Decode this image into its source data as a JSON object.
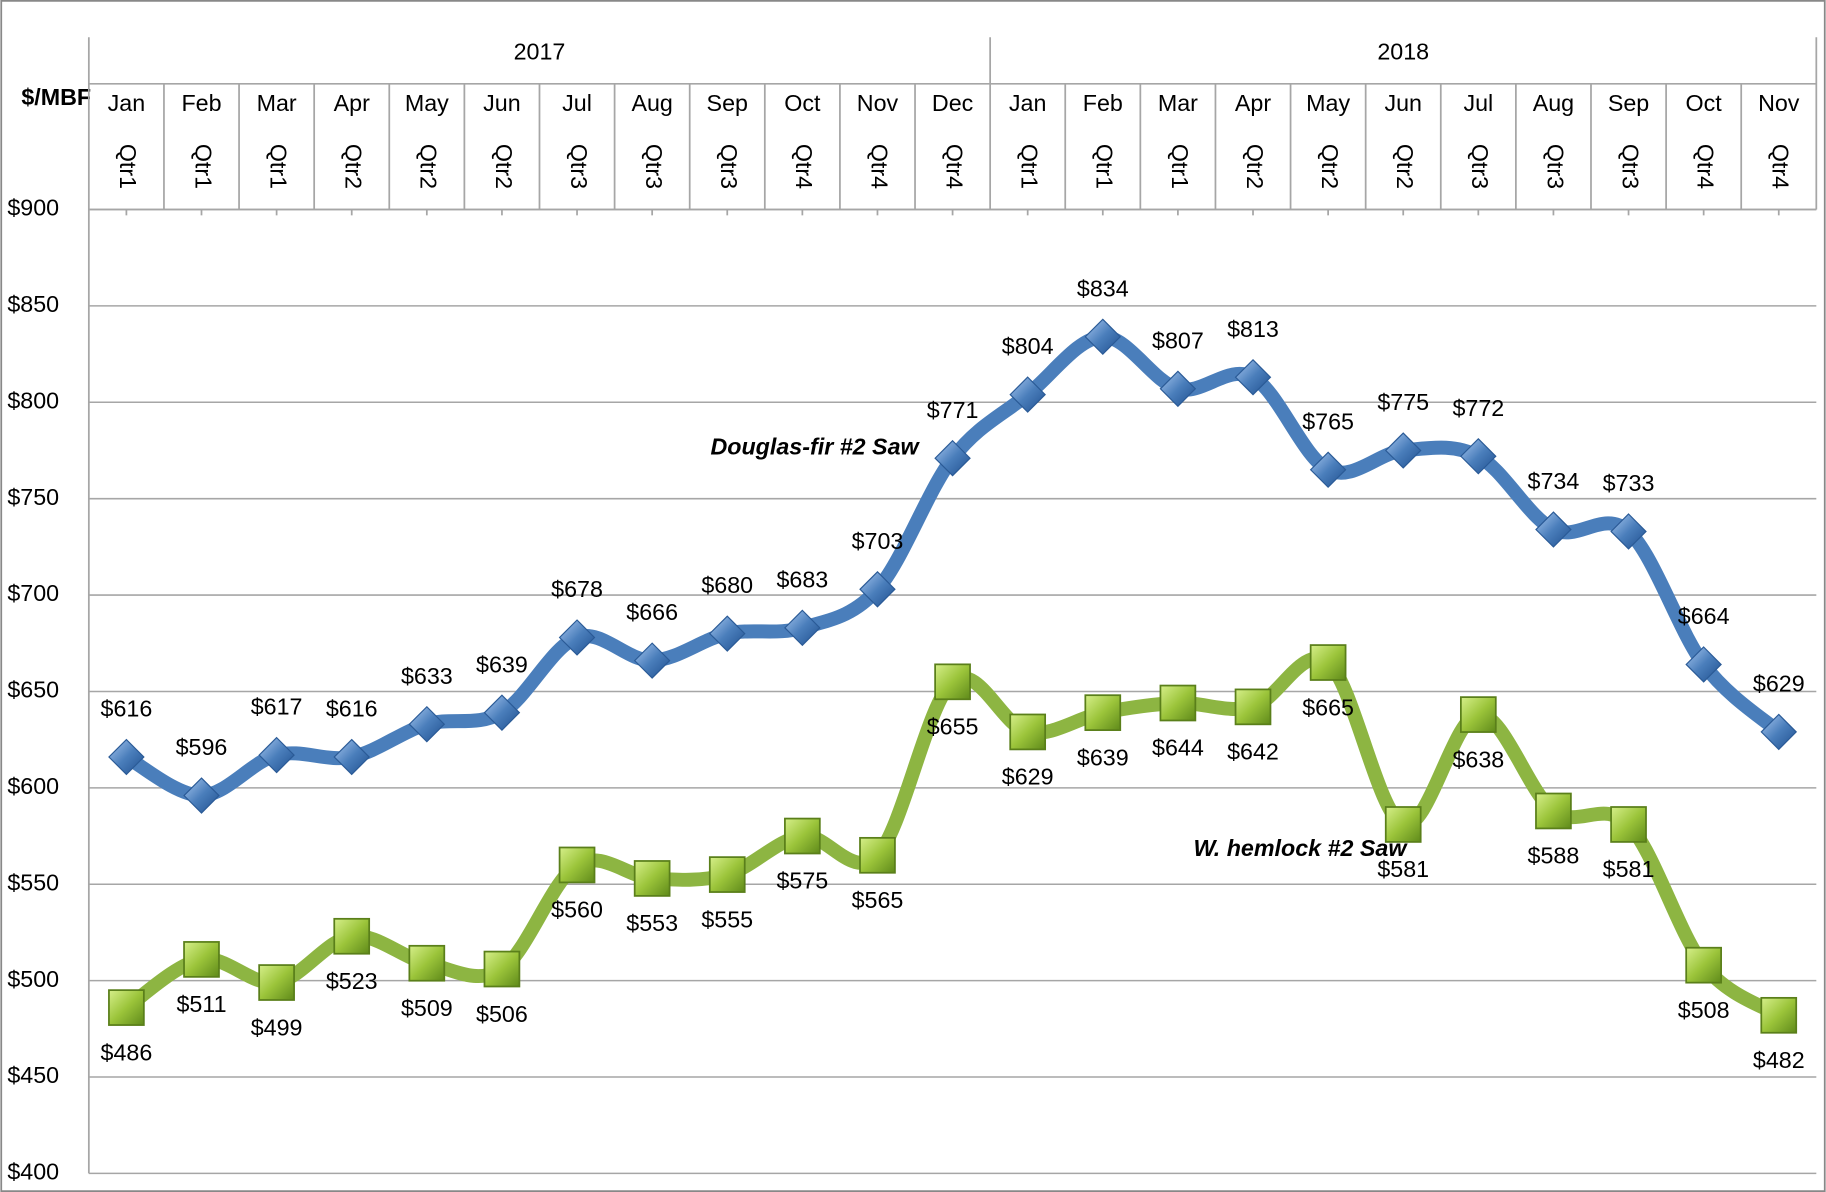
{
  "chart_data": {
    "type": "line",
    "ylabel": "$/MBF",
    "years": [
      {
        "label": "2017",
        "months": [
          "Jan",
          "Feb",
          "Mar",
          "Apr",
          "May",
          "Jun",
          "Jul",
          "Aug",
          "Sep",
          "Oct",
          "Nov",
          "Dec"
        ],
        "quarters": [
          "Qtr1",
          "Qtr1",
          "Qtr1",
          "Qtr2",
          "Qtr2",
          "Qtr2",
          "Qtr3",
          "Qtr3",
          "Qtr3",
          "Qtr4",
          "Qtr4",
          "Qtr4"
        ]
      },
      {
        "label": "2018",
        "months": [
          "Jan",
          "Feb",
          "Mar",
          "Apr",
          "May",
          "Jun",
          "Jul",
          "Aug",
          "Sep",
          "Oct",
          "Nov"
        ],
        "quarters": [
          "Qtr1",
          "Qtr1",
          "Qtr1",
          "Qtr2",
          "Qtr2",
          "Qtr2",
          "Qtr3",
          "Qtr3",
          "Qtr3",
          "Qtr4",
          "Qtr4"
        ]
      }
    ],
    "series": [
      {
        "name": "Douglas-fir #2 Saw",
        "color": "#4a7ebb",
        "marker": "diamond",
        "label_side": "above",
        "values": [
          616,
          596,
          617,
          616,
          633,
          639,
          678,
          666,
          680,
          683,
          703,
          771,
          804,
          834,
          807,
          813,
          765,
          775,
          772,
          734,
          733,
          664,
          629
        ],
        "value_labels": [
          "$616",
          "$596",
          "$617",
          "$616",
          "$633",
          "$639",
          "$678",
          "$666",
          "$680",
          "$683",
          "$703",
          "$771",
          "$804",
          "$834",
          "$807",
          "$813",
          "$765",
          "$775",
          "$772",
          "$734",
          "$733",
          "$664",
          "$629"
        ]
      },
      {
        "name": "W. hemlock  #2 Saw",
        "color": "#8db542",
        "marker": "square",
        "label_side": "below",
        "values": [
          486,
          511,
          499,
          523,
          509,
          506,
          560,
          553,
          555,
          575,
          565,
          655,
          629,
          639,
          644,
          642,
          665,
          581,
          638,
          588,
          581,
          508,
          482
        ],
        "value_labels": [
          "$486",
          "$511",
          "$499",
          "$523",
          "$509",
          "$506",
          "$560",
          "$553",
          "$555",
          "$575",
          "$565",
          "$655",
          "$629",
          "$639",
          "$644",
          "$642",
          "$665",
          "$581",
          "$638",
          "$588",
          "$581",
          "$508",
          "$482"
        ]
      }
    ],
    "ylim": [
      400,
      900
    ],
    "yticks": [
      {
        "value": 400,
        "label": "$400"
      },
      {
        "value": 450,
        "label": "$450"
      },
      {
        "value": 500,
        "label": "$500"
      },
      {
        "value": 550,
        "label": "$550"
      },
      {
        "value": 600,
        "label": "$600"
      },
      {
        "value": 650,
        "label": "$650"
      },
      {
        "value": 700,
        "label": "$700"
      },
      {
        "value": 750,
        "label": "$750"
      },
      {
        "value": 800,
        "label": "$800"
      },
      {
        "value": 850,
        "label": "$850"
      },
      {
        "value": 900,
        "label": "$900"
      }
    ],
    "grid": true
  }
}
